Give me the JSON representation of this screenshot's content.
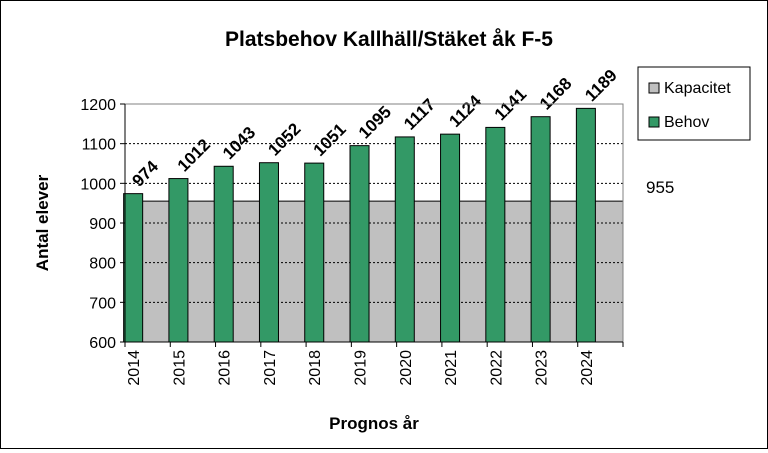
{
  "chart_data": {
    "type": "bar",
    "title": "Platsbehov Kallhäll/Stäket åk F-5",
    "xlabel": "Prognos år",
    "ylabel": "Antal elever",
    "ylim": [
      600,
      1200
    ],
    "yticks": [
      600,
      700,
      800,
      900,
      1000,
      1100,
      1200
    ],
    "grid": true,
    "legend_position": "right",
    "categories": [
      "2014",
      "2015",
      "2016",
      "2017",
      "2018",
      "2019",
      "2020",
      "2021",
      "2022",
      "2023",
      "2024"
    ],
    "series": [
      {
        "name": "Kapacitet",
        "type": "area",
        "color": "#c0c0c0",
        "values": [
          955,
          955,
          955,
          955,
          955,
          955,
          955,
          955,
          955,
          955,
          955
        ]
      },
      {
        "name": "Behov",
        "type": "bar",
        "color": "#339966",
        "values": [
          974,
          1012,
          1043,
          1052,
          1051,
          1095,
          1117,
          1124,
          1141,
          1168,
          1189
        ],
        "data_labels": [
          "974",
          "1012",
          "1043",
          "1052",
          "1051",
          "1095",
          "1117",
          "1124",
          "1141",
          "1168",
          "1189"
        ]
      }
    ],
    "annotation": "955"
  }
}
